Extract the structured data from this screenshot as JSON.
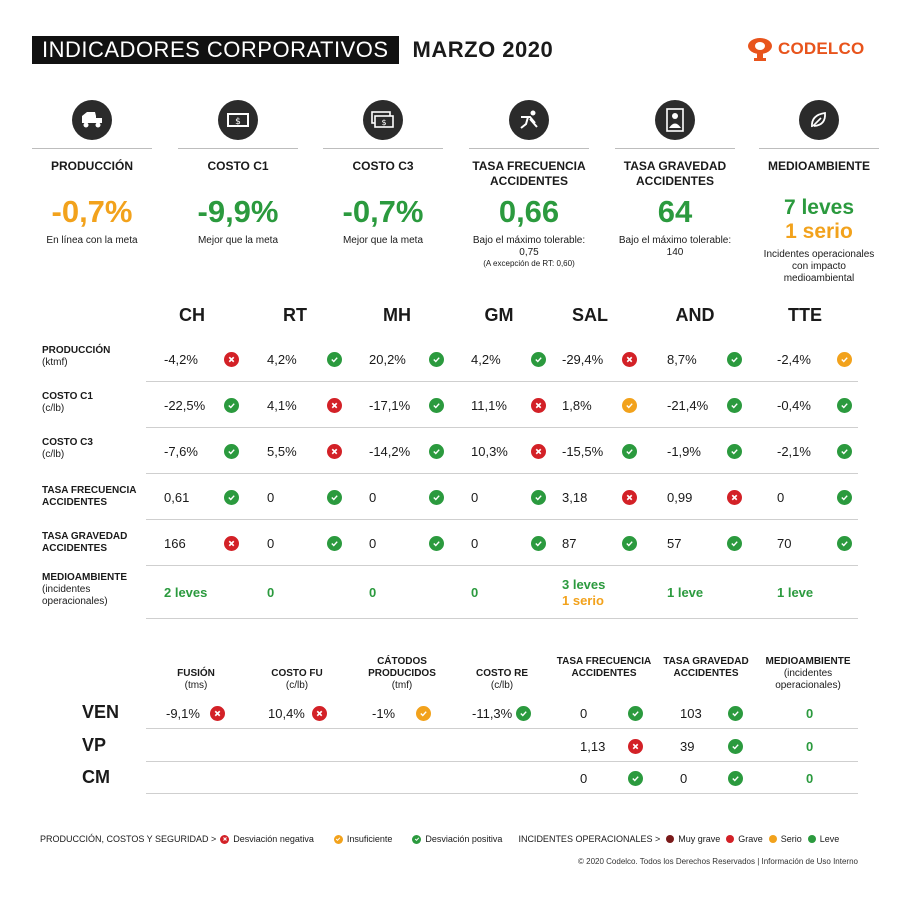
{
  "header": {
    "title": "INDICADORES CORPORATIVOS",
    "date": "MARZO 2020"
  },
  "logo": {
    "text": "CODELCO",
    "color": "#e8541c"
  },
  "colors": {
    "green": "#2b9a3e",
    "orange": "#f2a21c",
    "red": "#d32127",
    "dark_red": "#7a1a1a"
  },
  "kpis": [
    {
      "icon": "truck-icon",
      "label": "PRODUCCIÓN",
      "value": "-0,7%",
      "color": "orange",
      "note": "En línea con la meta"
    },
    {
      "icon": "money-icon",
      "label": "COSTO C1",
      "value": "-9,9%",
      "color": "green",
      "note": "Mejor que la meta"
    },
    {
      "icon": "money-stack-icon",
      "label": "COSTO C3",
      "value": "-0,7%",
      "color": "green",
      "note": "Mejor que la meta"
    },
    {
      "icon": "fall-person-icon",
      "label": "TASA FRECUENCIA ACCIDENTES",
      "value": "0,66",
      "color": "green",
      "note": "Bajo el máximo tolerable: 0,75",
      "note2": "(A excepción de RT: 0,60)"
    },
    {
      "icon": "worker-icon",
      "label": "TASA GRAVEDAD ACCIDENTES",
      "value": "64",
      "color": "green",
      "note": "Bajo el máximo tolerable: 140"
    },
    {
      "icon": "leaf-icon",
      "label": "MEDIOAMBIENTE",
      "value": "7 leves",
      "value2": "1 serio",
      "note": "Incidentes operacionales con impacto medioambiental"
    }
  ],
  "divisions": [
    "CH",
    "RT",
    "MH",
    "GM",
    "SAL",
    "AND",
    "TTE"
  ],
  "rows": [
    {
      "label": "PRODUCCIÓN",
      "unit": "(ktmf)",
      "cells": [
        {
          "v": "-4,2%",
          "s": "red"
        },
        {
          "v": "4,2%",
          "s": "grn"
        },
        {
          "v": "20,2%",
          "s": "grn"
        },
        {
          "v": "4,2%",
          "s": "grn"
        },
        {
          "v": "-29,4%",
          "s": "red"
        },
        {
          "v": "8,7%",
          "s": "grn"
        },
        {
          "v": "-2,4%",
          "s": "org"
        }
      ]
    },
    {
      "label": "COSTO C1",
      "unit": "(c/lb)",
      "cells": [
        {
          "v": "-22,5%",
          "s": "grn"
        },
        {
          "v": "4,1%",
          "s": "red"
        },
        {
          "v": "-17,1%",
          "s": "grn"
        },
        {
          "v": "11,1%",
          "s": "red"
        },
        {
          "v": "1,8%",
          "s": "org"
        },
        {
          "v": "-21,4%",
          "s": "grn"
        },
        {
          "v": "-0,4%",
          "s": "grn"
        }
      ]
    },
    {
      "label": "COSTO C3",
      "unit": "(c/lb)",
      "cells": [
        {
          "v": "-7,6%",
          "s": "grn"
        },
        {
          "v": "5,5%",
          "s": "red"
        },
        {
          "v": "-14,2%",
          "s": "grn"
        },
        {
          "v": "10,3%",
          "s": "red"
        },
        {
          "v": "-15,5%",
          "s": "grn"
        },
        {
          "v": "-1,9%",
          "s": "grn"
        },
        {
          "v": "-2,1%",
          "s": "grn"
        }
      ]
    },
    {
      "label": "TASA FRECUENCIA",
      "label2": "ACCIDENTES",
      "cells": [
        {
          "v": "0,61",
          "s": "grn"
        },
        {
          "v": "0",
          "s": "grn"
        },
        {
          "v": "0",
          "s": "grn"
        },
        {
          "v": "0",
          "s": "grn"
        },
        {
          "v": "3,18",
          "s": "red"
        },
        {
          "v": "0,99",
          "s": "red"
        },
        {
          "v": "0",
          "s": "grn"
        }
      ]
    },
    {
      "label": "TASA GRAVEDAD",
      "label2": "ACCIDENTES",
      "cells": [
        {
          "v": "166",
          "s": "red"
        },
        {
          "v": "0",
          "s": "grn"
        },
        {
          "v": "0",
          "s": "grn"
        },
        {
          "v": "0",
          "s": "grn"
        },
        {
          "v": "87",
          "s": "grn"
        },
        {
          "v": "57",
          "s": "grn"
        },
        {
          "v": "70",
          "s": "grn"
        }
      ]
    }
  ],
  "env_row": {
    "label": "MEDIOAMBIENTE",
    "unit": "(incidentes operacionales)",
    "cells": [
      {
        "v": "2 leves"
      },
      {
        "v": "0"
      },
      {
        "v": "0"
      },
      {
        "v": "0"
      },
      {
        "v": "3 leves",
        "v2": "1 serio"
      },
      {
        "v": "1 leve"
      },
      {
        "v": "1 leve"
      }
    ]
  },
  "t2_headers": [
    {
      "label": "FUSIÓN",
      "unit": "(tms)"
    },
    {
      "label": "COSTO FU",
      "unit": "(c/lb)"
    },
    {
      "label": "CÁTODOS PRODUCIDOS",
      "unit": "(tmf)"
    },
    {
      "label": "COSTO RE",
      "unit": "(c/lb)"
    },
    {
      "label": "TASA FRECUENCIA ACCIDENTES",
      "unit": ""
    },
    {
      "label": "TASA GRAVEDAD ACCIDENTES",
      "unit": ""
    },
    {
      "label": "MEDIOAMBIENTE",
      "unit": "(incidentes operacionales)"
    }
  ],
  "t2_rows": [
    {
      "label": "VEN",
      "cells": [
        {
          "v": "-9,1%",
          "s": "red"
        },
        {
          "v": "10,4%",
          "s": "red"
        },
        {
          "v": "-1%",
          "s": "org"
        },
        {
          "v": "-11,3%",
          "s": "grn"
        },
        {
          "v": "0",
          "s": "grn"
        },
        {
          "v": "103",
          "s": "grn"
        },
        {
          "v": "0",
          "env": true
        }
      ]
    },
    {
      "label": "VP",
      "cells": [
        null,
        null,
        null,
        null,
        {
          "v": "1,13",
          "s": "red"
        },
        {
          "v": "39",
          "s": "grn"
        },
        {
          "v": "0",
          "env": true
        }
      ]
    },
    {
      "label": "CM",
      "cells": [
        null,
        null,
        null,
        null,
        {
          "v": "0",
          "s": "grn"
        },
        {
          "v": "0",
          "s": "grn"
        },
        {
          "v": "0",
          "env": true
        }
      ]
    }
  ],
  "legend": {
    "group1": "PRODUCCIÓN, COSTOS Y SEGURIDAD >",
    "neg": "Desviación negativa",
    "ins": "Insuficiente",
    "pos": "Desviación positiva",
    "group2": "INCIDENTES OPERACIONALES >",
    "muy_grave": "Muy grave",
    "grave": "Grave",
    "serio": "Serio",
    "leve": "Leve"
  },
  "footer": "© 2020 Codelco. Todos los Derechos Reservados | Información de Uso Interno"
}
